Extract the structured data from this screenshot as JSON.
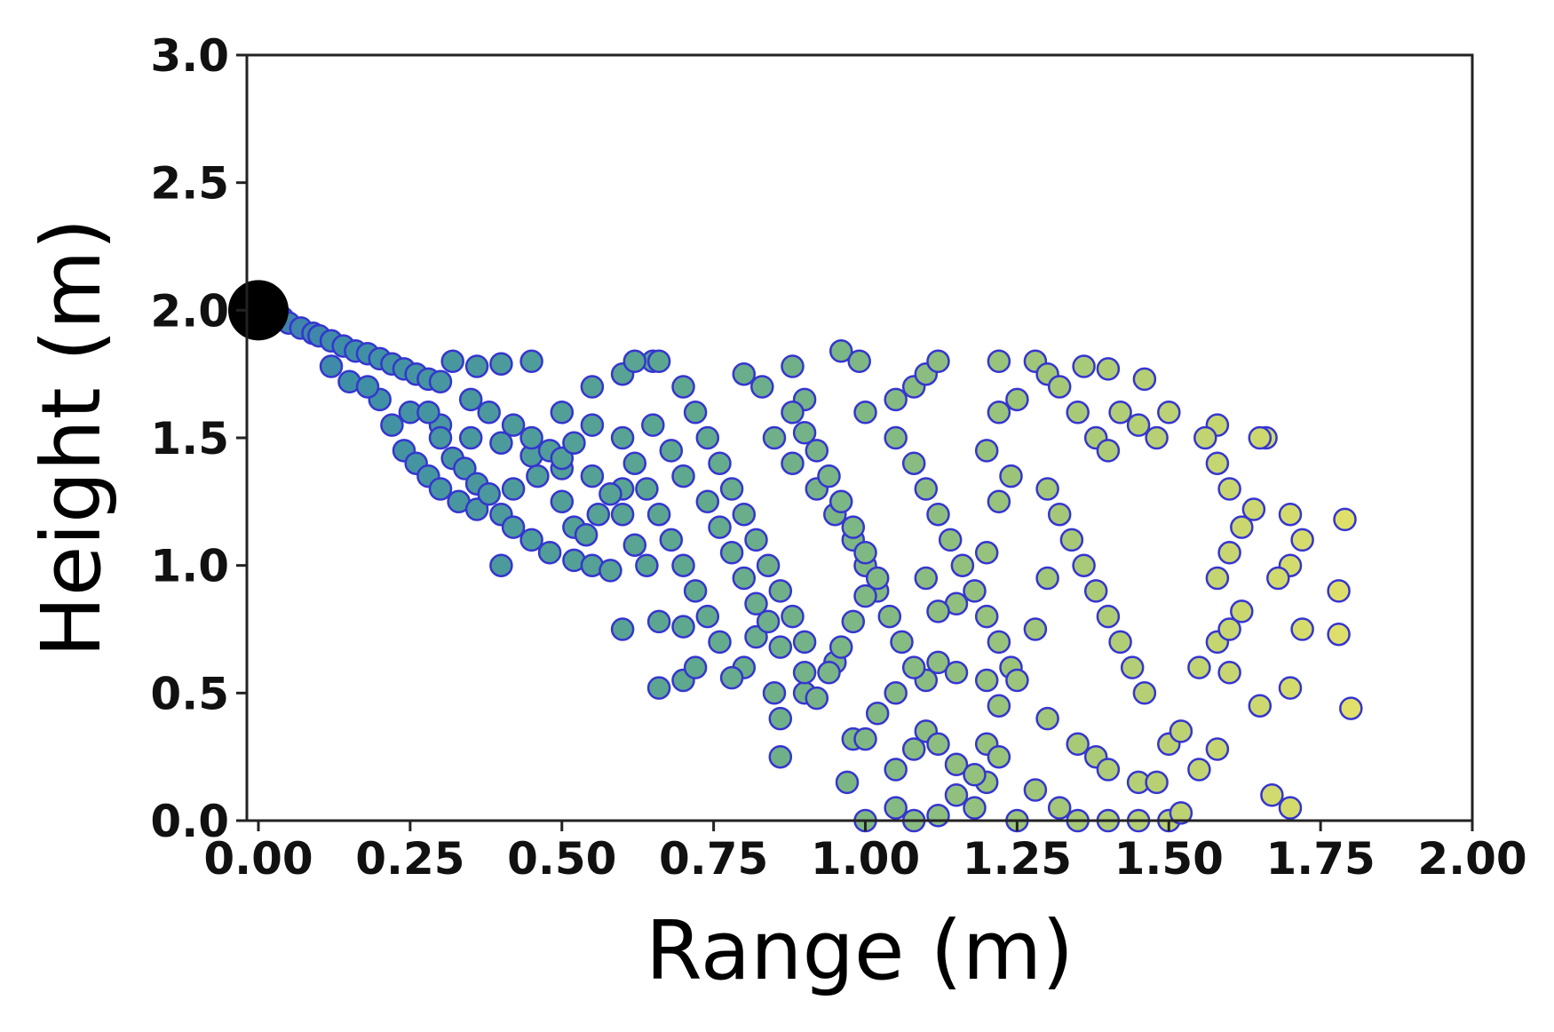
{
  "chart_data": {
    "type": "scatter",
    "xlabel": "Range (m)",
    "ylabel": "Height (m)",
    "xlim": [
      0,
      2.0
    ],
    "ylim": [
      0,
      3.0
    ],
    "xticks": [
      "0.00",
      "0.25",
      "0.50",
      "0.75",
      "1.00",
      "1.25",
      "1.50",
      "1.75",
      "2.00"
    ],
    "yticks": [
      "0.0",
      "0.5",
      "1.0",
      "1.5",
      "2.0",
      "2.5",
      "3.0"
    ],
    "grid": false,
    "color_scale": [
      "#4B4BC8",
      "#3E8FA6",
      "#5EA88F",
      "#9CC57A",
      "#E0E06A"
    ],
    "edge_color": "#3535D0",
    "source_point": {
      "x": 0.0,
      "y": 2.0,
      "color": "#000000"
    },
    "series": [
      {
        "points": [
          [
            0.02,
            1.99
          ],
          [
            0.04,
            1.97
          ],
          [
            0.05,
            1.95
          ],
          [
            0.07,
            1.93
          ],
          [
            0.09,
            1.91
          ],
          [
            0.1,
            1.9
          ],
          [
            0.12,
            1.88
          ],
          [
            0.14,
            1.86
          ],
          [
            0.16,
            1.84
          ],
          [
            0.18,
            1.83
          ],
          [
            0.2,
            1.81
          ],
          [
            0.22,
            1.79
          ],
          [
            0.24,
            1.77
          ],
          [
            0.26,
            1.75
          ],
          [
            0.28,
            1.73
          ],
          [
            0.3,
            1.72
          ],
          [
            0.32,
            1.8
          ],
          [
            0.36,
            1.78
          ],
          [
            0.4,
            1.79
          ],
          [
            0.45,
            1.8
          ],
          [
            0.12,
            1.78
          ],
          [
            0.15,
            1.72
          ],
          [
            0.2,
            1.65
          ],
          [
            0.25,
            1.6
          ],
          [
            0.3,
            1.55
          ],
          [
            0.35,
            1.5
          ],
          [
            0.4,
            1.48
          ],
          [
            0.45,
            1.43
          ],
          [
            0.5,
            1.38
          ],
          [
            0.55,
            1.35
          ],
          [
            0.6,
            1.3
          ],
          [
            0.18,
            1.7
          ],
          [
            0.22,
            1.55
          ],
          [
            0.24,
            1.45
          ],
          [
            0.26,
            1.4
          ],
          [
            0.28,
            1.35
          ],
          [
            0.3,
            1.3
          ],
          [
            0.33,
            1.25
          ],
          [
            0.36,
            1.22
          ],
          [
            0.4,
            1.2
          ],
          [
            0.42,
            1.15
          ],
          [
            0.45,
            1.1
          ],
          [
            0.48,
            1.05
          ],
          [
            0.52,
            1.02
          ],
          [
            0.55,
            1.0
          ],
          [
            0.58,
            0.98
          ],
          [
            0.4,
            1.0
          ],
          [
            0.5,
            1.6
          ],
          [
            0.55,
            1.7
          ],
          [
            0.6,
            1.75
          ],
          [
            0.65,
            1.8
          ],
          [
            0.7,
            1.7
          ],
          [
            0.72,
            1.6
          ],
          [
            0.74,
            1.5
          ],
          [
            0.76,
            1.4
          ],
          [
            0.78,
            1.3
          ],
          [
            0.8,
            1.2
          ],
          [
            0.82,
            1.1
          ],
          [
            0.84,
            1.0
          ],
          [
            0.86,
            0.9
          ],
          [
            0.88,
            0.8
          ],
          [
            0.9,
            0.7
          ],
          [
            0.62,
            1.8
          ],
          [
            0.66,
            1.8
          ],
          [
            0.6,
            1.5
          ],
          [
            0.62,
            1.4
          ],
          [
            0.64,
            1.3
          ],
          [
            0.66,
            1.2
          ],
          [
            0.68,
            1.1
          ],
          [
            0.7,
            1.0
          ],
          [
            0.72,
            0.9
          ],
          [
            0.74,
            0.8
          ],
          [
            0.6,
            0.75
          ],
          [
            0.66,
            0.78
          ],
          [
            0.7,
            0.76
          ],
          [
            0.76,
            0.7
          ],
          [
            0.8,
            0.6
          ],
          [
            0.85,
            0.5
          ],
          [
            0.86,
            0.4
          ],
          [
            0.86,
            0.25
          ],
          [
            0.7,
            0.55
          ],
          [
            0.66,
            0.52
          ],
          [
            0.72,
            0.6
          ],
          [
            0.78,
            0.56
          ],
          [
            0.82,
            0.72
          ],
          [
            0.9,
            0.5
          ],
          [
            0.95,
            0.62
          ],
          [
            0.97,
            0.15
          ],
          [
            0.98,
            0.32
          ],
          [
            1.0,
            0.32
          ],
          [
            1.02,
            0.42
          ],
          [
            1.05,
            0.5
          ],
          [
            1.1,
            0.55
          ],
          [
            1.12,
            0.62
          ],
          [
            1.15,
            0.58
          ],
          [
            1.2,
            0.55
          ],
          [
            0.96,
            1.84
          ],
          [
            0.99,
            1.8
          ],
          [
            0.9,
            1.65
          ],
          [
            0.85,
            1.5
          ],
          [
            0.88,
            1.4
          ],
          [
            0.92,
            1.3
          ],
          [
            0.95,
            1.2
          ],
          [
            0.98,
            1.1
          ],
          [
            1.0,
            1.0
          ],
          [
            1.02,
            0.9
          ],
          [
            1.04,
            0.8
          ],
          [
            1.06,
            0.7
          ],
          [
            1.08,
            0.6
          ],
          [
            0.8,
            1.75
          ],
          [
            0.83,
            1.7
          ],
          [
            0.88,
            1.78
          ],
          [
            1.05,
            1.65
          ],
          [
            1.08,
            1.7
          ],
          [
            1.1,
            1.75
          ],
          [
            1.12,
            1.8
          ],
          [
            1.0,
            1.6
          ],
          [
            1.05,
            1.5
          ],
          [
            1.08,
            1.4
          ],
          [
            1.1,
            1.3
          ],
          [
            1.12,
            1.2
          ],
          [
            1.14,
            1.1
          ],
          [
            1.16,
            1.0
          ],
          [
            1.18,
            0.9
          ],
          [
            1.2,
            0.8
          ],
          [
            1.22,
            0.7
          ],
          [
            1.24,
            0.6
          ],
          [
            1.1,
            0.95
          ],
          [
            1.15,
            0.85
          ],
          [
            1.12,
            0.82
          ],
          [
            1.2,
            1.05
          ],
          [
            1.22,
            1.25
          ],
          [
            1.24,
            1.35
          ],
          [
            1.2,
            1.45
          ],
          [
            1.22,
            1.6
          ],
          [
            1.25,
            1.65
          ],
          [
            1.22,
            1.8
          ],
          [
            1.28,
            1.8
          ],
          [
            1.3,
            1.75
          ],
          [
            1.32,
            1.7
          ],
          [
            1.35,
            1.6
          ],
          [
            1.38,
            1.5
          ],
          [
            1.4,
            1.45
          ],
          [
            1.42,
            1.6
          ],
          [
            1.45,
            1.55
          ],
          [
            1.48,
            1.5
          ],
          [
            1.5,
            1.6
          ],
          [
            1.3,
            1.3
          ],
          [
            1.32,
            1.2
          ],
          [
            1.34,
            1.1
          ],
          [
            1.36,
            1.0
          ],
          [
            1.38,
            0.9
          ],
          [
            1.4,
            0.8
          ],
          [
            1.42,
            0.7
          ],
          [
            1.44,
            0.6
          ],
          [
            1.46,
            0.5
          ],
          [
            1.3,
            0.95
          ],
          [
            1.28,
            0.75
          ],
          [
            1.25,
            0.55
          ],
          [
            1.22,
            0.45
          ],
          [
            1.3,
            0.4
          ],
          [
            1.35,
            0.3
          ],
          [
            1.38,
            0.25
          ],
          [
            1.4,
            0.2
          ],
          [
            1.45,
            0.15
          ],
          [
            1.5,
            0.3
          ],
          [
            1.52,
            0.35
          ],
          [
            1.55,
            0.2
          ],
          [
            1.55,
            0.6
          ],
          [
            1.58,
            0.7
          ],
          [
            1.6,
            0.75
          ],
          [
            1.62,
            0.82
          ],
          [
            1.58,
            0.95
          ],
          [
            1.6,
            1.05
          ],
          [
            1.62,
            1.15
          ],
          [
            1.64,
            1.22
          ],
          [
            1.66,
            1.5
          ],
          [
            1.65,
            1.5
          ],
          [
            1.58,
            1.55
          ],
          [
            1.56,
            1.5
          ],
          [
            1.58,
            1.4
          ],
          [
            1.6,
            1.3
          ],
          [
            1.46,
            1.73
          ],
          [
            1.4,
            1.77
          ],
          [
            1.36,
            1.78
          ],
          [
            1.7,
            1.2
          ],
          [
            1.72,
            1.1
          ],
          [
            1.7,
            1.0
          ],
          [
            1.68,
            0.95
          ],
          [
            1.72,
            0.75
          ],
          [
            1.78,
            0.9
          ],
          [
            1.78,
            0.73
          ],
          [
            1.79,
            1.18
          ],
          [
            1.8,
            0.44
          ],
          [
            1.7,
            0.52
          ],
          [
            1.65,
            0.45
          ],
          [
            1.6,
            0.58
          ],
          [
            1.58,
            0.28
          ],
          [
            1.67,
            0.1
          ],
          [
            1.7,
            0.05
          ],
          [
            1.0,
            0.0
          ],
          [
            1.05,
            0.05
          ],
          [
            1.08,
            0.0
          ],
          [
            1.12,
            0.02
          ],
          [
            1.15,
            0.1
          ],
          [
            1.18,
            0.05
          ],
          [
            1.2,
            0.15
          ],
          [
            1.25,
            0.0
          ],
          [
            1.28,
            0.12
          ],
          [
            1.32,
            0.05
          ],
          [
            1.35,
            0.0
          ],
          [
            1.4,
            0.0
          ],
          [
            1.45,
            0.0
          ],
          [
            1.5,
            0.0
          ],
          [
            1.52,
            0.03
          ],
          [
            1.48,
            0.15
          ],
          [
            1.05,
            0.2
          ],
          [
            1.08,
            0.28
          ],
          [
            1.1,
            0.35
          ],
          [
            1.12,
            0.3
          ],
          [
            1.15,
            0.22
          ],
          [
            1.18,
            0.18
          ],
          [
            1.2,
            0.3
          ],
          [
            1.22,
            0.25
          ],
          [
            0.65,
            1.55
          ],
          [
            0.68,
            1.45
          ],
          [
            0.7,
            1.35
          ],
          [
            0.74,
            1.25
          ],
          [
            0.76,
            1.15
          ],
          [
            0.78,
            1.05
          ],
          [
            0.8,
            0.95
          ],
          [
            0.82,
            0.85
          ],
          [
            0.84,
            0.78
          ],
          [
            0.86,
            0.68
          ],
          [
            0.9,
            0.58
          ],
          [
            0.92,
            0.48
          ],
          [
            0.94,
            0.58
          ],
          [
            0.96,
            0.68
          ],
          [
            0.98,
            0.78
          ],
          [
            1.0,
            0.88
          ],
          [
            0.88,
            1.6
          ],
          [
            0.9,
            1.52
          ],
          [
            0.92,
            1.45
          ],
          [
            0.94,
            1.35
          ],
          [
            0.96,
            1.25
          ],
          [
            0.98,
            1.15
          ],
          [
            1.0,
            1.05
          ],
          [
            1.02,
            0.95
          ],
          [
            0.5,
            1.25
          ],
          [
            0.52,
            1.15
          ],
          [
            0.54,
            1.12
          ],
          [
            0.56,
            1.2
          ],
          [
            0.58,
            1.28
          ],
          [
            0.6,
            1.2
          ],
          [
            0.62,
            1.08
          ],
          [
            0.64,
            1.0
          ],
          [
            0.35,
            1.65
          ],
          [
            0.38,
            1.6
          ],
          [
            0.42,
            1.55
          ],
          [
            0.45,
            1.5
          ],
          [
            0.48,
            1.45
          ],
          [
            0.5,
            1.42
          ],
          [
            0.52,
            1.48
          ],
          [
            0.55,
            1.55
          ],
          [
            0.28,
            1.6
          ],
          [
            0.3,
            1.5
          ],
          [
            0.32,
            1.42
          ],
          [
            0.34,
            1.38
          ],
          [
            0.36,
            1.32
          ],
          [
            0.38,
            1.28
          ],
          [
            0.42,
            1.3
          ],
          [
            0.46,
            1.35
          ]
        ]
      }
    ]
  }
}
